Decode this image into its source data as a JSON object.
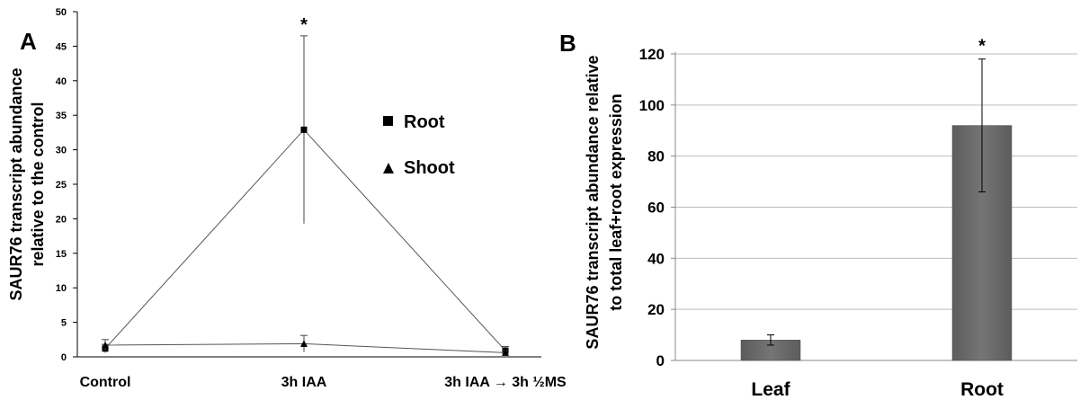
{
  "chart_data": [
    {
      "type": "line",
      "panel_label": "A",
      "ylabel": "SAUR76 transcript abundance relative to the control",
      "ylabel_lines": [
        "SAUR76 transcript abundance",
        "relative to the control"
      ],
      "categories": [
        "Control",
        "3h IAA",
        "3h IAA → 3h ½MS"
      ],
      "ylim": [
        0,
        50
      ],
      "yticks": [
        0,
        5,
        10,
        15,
        20,
        25,
        30,
        35,
        40,
        45,
        50
      ],
      "series": [
        {
          "name": "Root",
          "marker": "square",
          "values": [
            1.2,
            32.9,
            0.9
          ],
          "error": [
            0.6,
            13.6,
            0.6
          ]
        },
        {
          "name": "Shoot",
          "marker": "triangle",
          "values": [
            1.7,
            1.9,
            0.6
          ],
          "error": [
            0.8,
            1.2,
            0.3
          ]
        }
      ],
      "annotations": [
        {
          "category": "3h IAA",
          "text": "*"
        }
      ],
      "legend": [
        "Root",
        "Shoot"
      ]
    },
    {
      "type": "bar",
      "panel_label": "B",
      "ylabel": "SAUR76 transcript abundance relative to total leaf+root expression",
      "ylabel_lines": [
        "SAUR76 transcript abundance relative",
        "to total leaf+root expression"
      ],
      "categories": [
        "Leaf",
        "Root"
      ],
      "values": [
        8,
        92
      ],
      "error": [
        2,
        26
      ],
      "ylim": [
        0,
        120
      ],
      "yticks": [
        0,
        20,
        40,
        60,
        80,
        100,
        120
      ],
      "grid": true,
      "bar_color": "#6b6b6b",
      "annotations": [
        {
          "category": "Root",
          "text": "*"
        }
      ]
    }
  ]
}
